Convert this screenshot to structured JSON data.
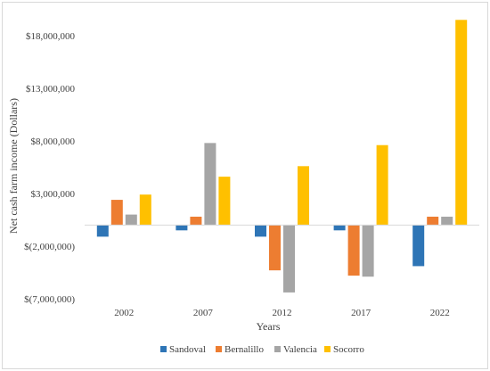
{
  "chart_data": {
    "type": "bar",
    "title": "",
    "xlabel": "Years",
    "ylabel": "Net cash farm income (Dollars)",
    "categories": [
      "2002",
      "2007",
      "2012",
      "2017",
      "2022"
    ],
    "series": [
      {
        "name": "Sandoval",
        "color": "#2e75b6",
        "values": [
          -1100000,
          -500000,
          -1100000,
          -500000,
          -3900000
        ]
      },
      {
        "name": "Bernalillo",
        "color": "#ed7d31",
        "values": [
          2400000,
          800000,
          -4300000,
          -4800000,
          800000
        ]
      },
      {
        "name": "Valencia",
        "color": "#a5a5a5",
        "values": [
          1000000,
          7800000,
          -6400000,
          -4900000,
          800000
        ]
      },
      {
        "name": "Socorro",
        "color": "#ffc000",
        "values": [
          2900000,
          4600000,
          5600000,
          7600000,
          19500000
        ]
      }
    ],
    "ylim": [
      -7000000,
      18000000
    ],
    "yticks": [
      18000000,
      13000000,
      8000000,
      3000000,
      -2000000,
      -7000000
    ],
    "ytick_labels": [
      "$18,000,000",
      "$13,000,000",
      "$8,000,000",
      "$3,000,000",
      "$(2,000,000)",
      "$(7,000,000)"
    ],
    "grid": false,
    "legend": "bottom"
  }
}
